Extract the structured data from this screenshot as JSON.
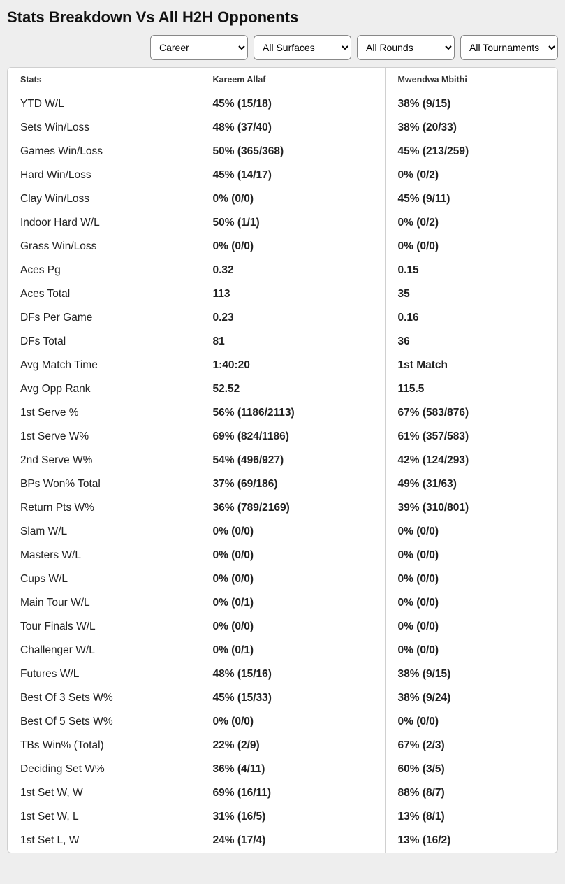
{
  "title": "Stats Breakdown Vs All H2H Opponents",
  "filters": {
    "period": "Career",
    "surface": "All Surfaces",
    "round": "All Rounds",
    "tournament": "All Tournaments"
  },
  "table": {
    "headers": {
      "stats": "Stats",
      "p1": "Kareem Allaf",
      "p2": "Mwendwa Mbithi"
    },
    "rows": [
      {
        "label": "YTD W/L",
        "p1": "45% (15/18)",
        "p2": "38% (9/15)"
      },
      {
        "label": "Sets Win/Loss",
        "p1": "48% (37/40)",
        "p2": "38% (20/33)"
      },
      {
        "label": "Games Win/Loss",
        "p1": "50% (365/368)",
        "p2": "45% (213/259)"
      },
      {
        "label": "Hard Win/Loss",
        "p1": "45% (14/17)",
        "p2": "0% (0/2)"
      },
      {
        "label": "Clay Win/Loss",
        "p1": "0% (0/0)",
        "p2": "45% (9/11)"
      },
      {
        "label": "Indoor Hard W/L",
        "p1": "50% (1/1)",
        "p2": "0% (0/2)"
      },
      {
        "label": "Grass Win/Loss",
        "p1": "0% (0/0)",
        "p2": "0% (0/0)"
      },
      {
        "label": "Aces Pg",
        "p1": "0.32",
        "p2": "0.15"
      },
      {
        "label": "Aces Total",
        "p1": "113",
        "p2": "35"
      },
      {
        "label": "DFs Per Game",
        "p1": "0.23",
        "p2": "0.16"
      },
      {
        "label": "DFs Total",
        "p1": "81",
        "p2": "36"
      },
      {
        "label": "Avg Match Time",
        "p1": "1:40:20",
        "p2": "1st Match"
      },
      {
        "label": "Avg Opp Rank",
        "p1": "52.52",
        "p2": "115.5"
      },
      {
        "label": "1st Serve %",
        "p1": "56% (1186/2113)",
        "p2": "67% (583/876)"
      },
      {
        "label": "1st Serve W%",
        "p1": "69% (824/1186)",
        "p2": "61% (357/583)"
      },
      {
        "label": "2nd Serve W%",
        "p1": "54% (496/927)",
        "p2": "42% (124/293)"
      },
      {
        "label": "BPs Won% Total",
        "p1": "37% (69/186)",
        "p2": "49% (31/63)"
      },
      {
        "label": "Return Pts W%",
        "p1": "36% (789/2169)",
        "p2": "39% (310/801)"
      },
      {
        "label": "Slam W/L",
        "p1": "0% (0/0)",
        "p2": "0% (0/0)"
      },
      {
        "label": "Masters W/L",
        "p1": "0% (0/0)",
        "p2": "0% (0/0)"
      },
      {
        "label": "Cups W/L",
        "p1": "0% (0/0)",
        "p2": "0% (0/0)"
      },
      {
        "label": "Main Tour W/L",
        "p1": "0% (0/1)",
        "p2": "0% (0/0)"
      },
      {
        "label": "Tour Finals W/L",
        "p1": "0% (0/0)",
        "p2": "0% (0/0)"
      },
      {
        "label": "Challenger W/L",
        "p1": "0% (0/1)",
        "p2": "0% (0/0)"
      },
      {
        "label": "Futures W/L",
        "p1": "48% (15/16)",
        "p2": "38% (9/15)"
      },
      {
        "label": "Best Of 3 Sets W%",
        "p1": "45% (15/33)",
        "p2": "38% (9/24)"
      },
      {
        "label": "Best Of 5 Sets W%",
        "p1": "0% (0/0)",
        "p2": "0% (0/0)"
      },
      {
        "label": "TBs Win% (Total)",
        "p1": "22% (2/9)",
        "p2": "67% (2/3)"
      },
      {
        "label": "Deciding Set W%",
        "p1": "36% (4/11)",
        "p2": "60% (3/5)"
      },
      {
        "label": "1st Set W, W",
        "p1": "69% (16/11)",
        "p2": "88% (8/7)"
      },
      {
        "label": "1st Set W, L",
        "p1": "31% (16/5)",
        "p2": "13% (8/1)"
      },
      {
        "label": "1st Set L, W",
        "p1": "24% (17/4)",
        "p2": "13% (16/2)"
      }
    ]
  }
}
